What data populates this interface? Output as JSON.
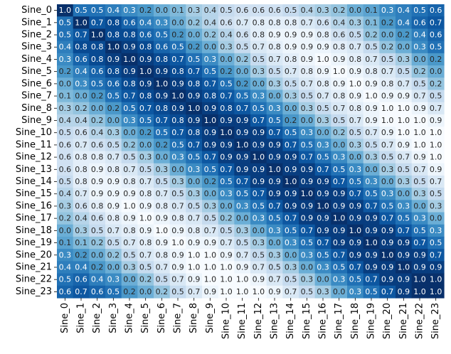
{
  "chart_data": {
    "type": "heatmap",
    "title": "",
    "xlabel": "",
    "ylabel": "",
    "colormap": "Blues",
    "value_range": [
      -1.0,
      1.0
    ],
    "colorbar": false,
    "annotations": true,
    "annotation_format": "one decimal, rounded absolute value",
    "row_labels": [
      "Sine_0",
      "Sine_1",
      "Sine_2",
      "Sine_3",
      "Sine_4",
      "Sine_5",
      "Sine_6",
      "Sine_7",
      "Sine_8",
      "Sine_9",
      "Sine_10",
      "Sine_11",
      "Sine_12",
      "Sine_13",
      "Sine_14",
      "Sine_15",
      "Sine_16",
      "Sine_17",
      "Sine_18",
      "Sine_19",
      "Sine_20",
      "Sine_21",
      "Sine_22",
      "Sine_23"
    ],
    "col_labels": [
      "Sine_0",
      "Sine_1",
      "Sine_2",
      "Sine_3",
      "Sine_4",
      "Sine_5",
      "Sine_6",
      "Sine_7",
      "Sine_8",
      "Sine_9",
      "Sine_10",
      "Sine_11",
      "Sine_12",
      "Sine_13",
      "Sine_14",
      "Sine_15",
      "Sine_16",
      "Sine_17",
      "Sine_18",
      "Sine_19",
      "Sine_20",
      "Sine_21",
      "Sine_22",
      "Sine_23"
    ],
    "values": [
      [
        1.0,
        0.5,
        0.5,
        0.4,
        0.3,
        0.2,
        0.0,
        -0.1,
        -0.3,
        -0.4,
        -0.5,
        -0.6,
        -0.6,
        -0.6,
        -0.5,
        -0.4,
        -0.3,
        -0.2,
        0.0,
        0.1,
        0.3,
        0.4,
        0.5,
        0.6
      ],
      [
        0.5,
        1.0,
        0.7,
        0.8,
        0.6,
        0.4,
        0.3,
        0.0,
        -0.2,
        -0.4,
        -0.6,
        -0.7,
        -0.8,
        -0.8,
        -0.8,
        -0.7,
        -0.6,
        -0.4,
        -0.3,
        -0.1,
        0.2,
        0.4,
        0.6,
        0.7
      ],
      [
        0.5,
        0.7,
        1.0,
        0.8,
        0.8,
        0.6,
        0.5,
        0.2,
        0.0,
        -0.2,
        -0.4,
        -0.6,
        -0.8,
        -0.9,
        -0.9,
        -0.9,
        -0.8,
        -0.6,
        -0.5,
        -0.2,
        0.0,
        0.2,
        0.4,
        0.6
      ],
      [
        0.4,
        0.8,
        0.8,
        1.0,
        0.9,
        0.8,
        0.6,
        0.5,
        0.2,
        0.0,
        -0.3,
        -0.5,
        -0.7,
        -0.8,
        -0.9,
        -0.9,
        -0.9,
        -0.8,
        -0.7,
        -0.5,
        -0.2,
        0.0,
        0.3,
        0.5
      ],
      [
        0.3,
        0.6,
        0.8,
        0.9,
        1.0,
        0.9,
        0.8,
        0.7,
        0.5,
        0.3,
        0.0,
        -0.2,
        -0.5,
        -0.7,
        -0.8,
        -0.9,
        -1.0,
        -0.9,
        -0.8,
        -0.7,
        -0.5,
        -0.3,
        0.0,
        0.2
      ],
      [
        0.2,
        0.4,
        0.6,
        0.8,
        0.9,
        1.0,
        0.9,
        0.8,
        0.7,
        0.5,
        0.2,
        0.0,
        -0.3,
        -0.5,
        -0.7,
        -0.8,
        -0.9,
        -1.0,
        -0.9,
        -0.8,
        -0.7,
        -0.5,
        -0.2,
        0.0
      ],
      [
        0.0,
        0.3,
        0.5,
        0.6,
        0.8,
        0.9,
        1.0,
        0.9,
        0.8,
        0.7,
        0.5,
        0.2,
        0.0,
        -0.3,
        -0.5,
        -0.7,
        -0.8,
        -0.9,
        -1.0,
        -0.9,
        -0.8,
        -0.7,
        -0.5,
        -0.2
      ],
      [
        -0.1,
        0.0,
        0.2,
        0.5,
        0.7,
        0.8,
        0.9,
        1.0,
        0.9,
        0.8,
        0.7,
        0.5,
        0.3,
        0.0,
        -0.3,
        -0.5,
        -0.7,
        -0.8,
        -0.9,
        -1.0,
        -0.9,
        -0.9,
        -0.7,
        -0.5
      ],
      [
        -0.3,
        -0.2,
        0.0,
        0.2,
        0.5,
        0.7,
        0.8,
        0.9,
        1.0,
        0.9,
        0.8,
        0.7,
        0.5,
        0.3,
        0.0,
        -0.3,
        -0.5,
        -0.7,
        -0.8,
        -0.9,
        -1.0,
        -1.0,
        -0.9,
        -0.7
      ],
      [
        -0.4,
        -0.4,
        -0.2,
        0.0,
        0.3,
        0.5,
        0.7,
        0.8,
        0.9,
        1.0,
        0.9,
        0.9,
        0.7,
        0.5,
        0.2,
        0.0,
        -0.3,
        -0.5,
        -0.7,
        -0.9,
        -1.0,
        -1.0,
        -1.0,
        -0.9
      ],
      [
        -0.5,
        -0.6,
        -0.4,
        -0.3,
        0.0,
        0.2,
        0.5,
        0.7,
        0.8,
        0.9,
        1.0,
        0.9,
        0.9,
        0.7,
        0.5,
        0.3,
        0.0,
        -0.2,
        -0.5,
        -0.7,
        -0.9,
        -1.0,
        -1.0,
        -1.0
      ],
      [
        -0.6,
        -0.7,
        -0.6,
        -0.5,
        -0.2,
        0.0,
        0.2,
        0.5,
        0.7,
        0.9,
        0.9,
        1.0,
        0.9,
        0.9,
        0.7,
        0.5,
        0.3,
        0.0,
        -0.3,
        -0.5,
        -0.7,
        -0.9,
        -1.0,
        -1.0
      ],
      [
        -0.6,
        -0.8,
        -0.8,
        -0.7,
        -0.5,
        -0.3,
        0.0,
        0.3,
        0.5,
        0.7,
        0.9,
        0.9,
        1.0,
        0.9,
        0.9,
        0.7,
        0.5,
        0.3,
        0.0,
        -0.3,
        -0.5,
        -0.7,
        -0.9,
        -1.0
      ],
      [
        -0.6,
        -0.8,
        -0.9,
        -0.8,
        -0.7,
        -0.5,
        -0.3,
        0.0,
        0.3,
        0.5,
        0.7,
        0.9,
        0.9,
        1.0,
        0.9,
        0.9,
        0.7,
        0.5,
        0.3,
        0.0,
        -0.3,
        -0.5,
        -0.7,
        -0.9
      ],
      [
        -0.5,
        -0.8,
        -0.9,
        -0.9,
        -0.8,
        -0.7,
        -0.5,
        -0.3,
        0.0,
        0.2,
        0.5,
        0.7,
        0.9,
        0.9,
        1.0,
        0.9,
        0.9,
        0.7,
        0.5,
        0.3,
        0.0,
        -0.3,
        -0.5,
        -0.7
      ],
      [
        -0.4,
        -0.7,
        -0.9,
        -0.9,
        -0.9,
        -0.8,
        -0.7,
        -0.5,
        -0.3,
        0.0,
        0.3,
        0.5,
        0.7,
        0.9,
        0.9,
        1.0,
        0.9,
        0.9,
        0.7,
        0.5,
        0.3,
        0.0,
        -0.3,
        -0.5
      ],
      [
        -0.3,
        -0.6,
        -0.8,
        -0.9,
        -1.0,
        -0.9,
        -0.8,
        -0.7,
        -0.5,
        -0.3,
        0.0,
        0.3,
        0.5,
        0.7,
        0.9,
        0.9,
        1.0,
        0.9,
        0.9,
        0.7,
        0.5,
        0.3,
        0.0,
        -0.3
      ],
      [
        -0.2,
        -0.4,
        -0.6,
        -0.8,
        -0.9,
        -1.0,
        -0.9,
        -0.8,
        -0.7,
        -0.5,
        -0.2,
        0.0,
        0.3,
        0.5,
        0.7,
        0.9,
        0.9,
        1.0,
        0.9,
        0.9,
        0.7,
        0.5,
        0.3,
        0.0
      ],
      [
        0.0,
        -0.3,
        -0.5,
        -0.7,
        -0.8,
        -0.9,
        -1.0,
        -0.9,
        -0.8,
        -0.7,
        -0.5,
        -0.3,
        0.0,
        0.3,
        0.5,
        0.7,
        0.9,
        0.9,
        1.0,
        0.9,
        0.9,
        0.7,
        0.5,
        0.3
      ],
      [
        0.1,
        -0.1,
        -0.2,
        -0.5,
        -0.7,
        -0.8,
        -0.9,
        -1.0,
        -0.9,
        -0.9,
        -0.7,
        -0.5,
        -0.3,
        0.0,
        0.3,
        0.5,
        0.7,
        0.9,
        0.9,
        1.0,
        0.9,
        0.9,
        0.7,
        0.5
      ],
      [
        0.3,
        0.2,
        0.0,
        -0.2,
        -0.5,
        -0.7,
        -0.8,
        -0.9,
        -1.0,
        -1.0,
        -0.9,
        -0.7,
        -0.5,
        -0.3,
        0.0,
        0.3,
        0.5,
        0.7,
        0.9,
        0.9,
        1.0,
        0.9,
        0.9,
        0.7
      ],
      [
        0.4,
        0.4,
        0.2,
        0.0,
        -0.3,
        -0.5,
        -0.7,
        -0.9,
        -1.0,
        -1.0,
        -1.0,
        -0.9,
        -0.7,
        -0.5,
        -0.3,
        0.0,
        0.3,
        0.5,
        0.7,
        0.9,
        0.9,
        1.0,
        0.9,
        0.9
      ],
      [
        0.5,
        0.6,
        0.4,
        0.3,
        0.0,
        -0.2,
        -0.5,
        -0.7,
        -0.9,
        -1.0,
        -1.0,
        -1.0,
        -0.9,
        -0.7,
        -0.5,
        -0.3,
        0.0,
        0.3,
        0.5,
        0.7,
        0.9,
        0.9,
        1.0,
        1.0
      ],
      [
        0.6,
        0.7,
        0.6,
        0.5,
        0.2,
        0.0,
        -0.2,
        -0.5,
        -0.7,
        -0.9,
        -1.0,
        -1.0,
        -1.0,
        -0.9,
        -0.7,
        -0.5,
        -0.3,
        0.0,
        0.3,
        0.5,
        0.7,
        0.9,
        1.0,
        1.0
      ]
    ]
  }
}
